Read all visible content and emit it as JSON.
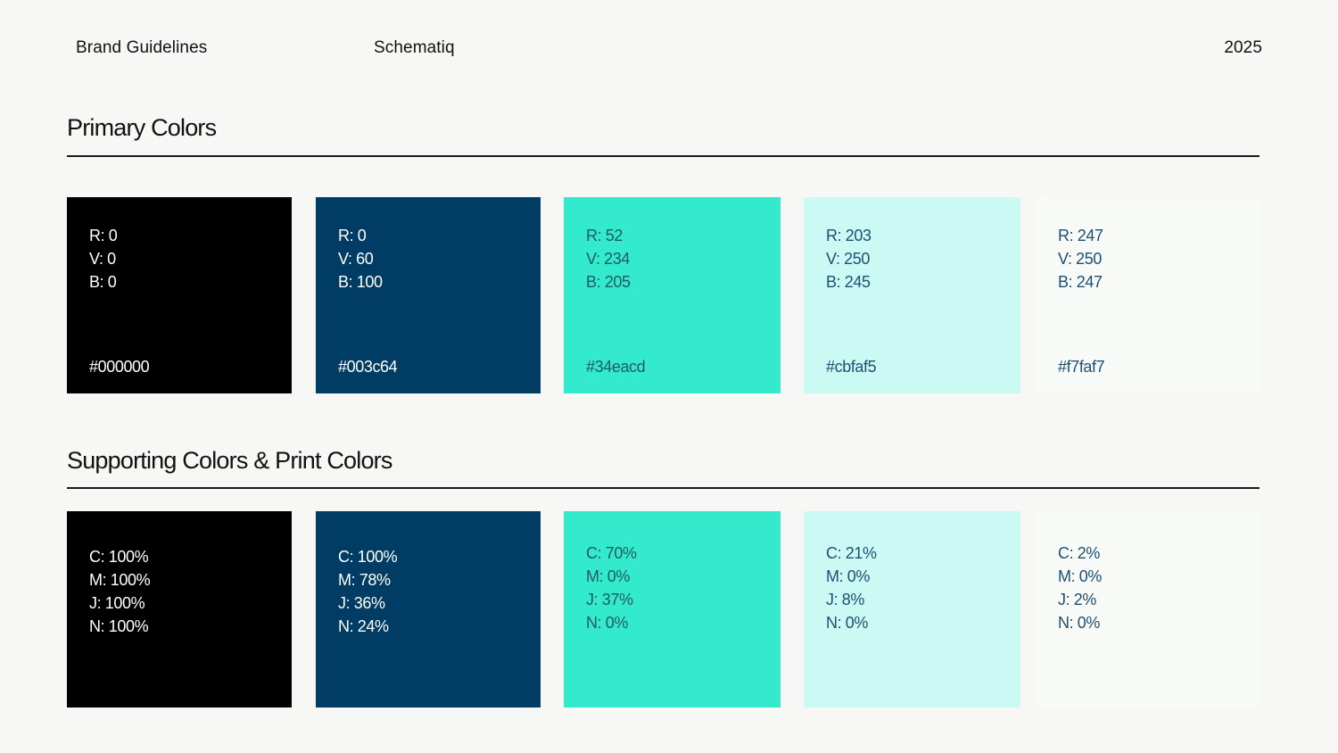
{
  "header": {
    "left": "Brand Guidelines",
    "center": "Schematiq",
    "right": "2025"
  },
  "primary": {
    "title": "Primary Colors",
    "swatches": [
      {
        "bg": "#000000",
        "fg": "#ffffff",
        "lines": [
          "R: 0",
          "V: 0",
          "B: 0"
        ],
        "hex": "#000000"
      },
      {
        "bg": "#003c64",
        "fg": "#ffffff",
        "lines": [
          "R: 0",
          "V: 60",
          "B: 100"
        ],
        "hex": "#003c64"
      },
      {
        "bg": "#34eacd",
        "fg": "#1f5b66",
        "lines": [
          "R: 52",
          "V: 234",
          "B: 205"
        ],
        "hex": "#34eacd"
      },
      {
        "bg": "#cbfaf5",
        "fg": "#1f4f72",
        "lines": [
          "R: 203",
          "V: 250",
          "B: 245"
        ],
        "hex": "#cbfaf5"
      },
      {
        "bg": "#f7faf7",
        "fg": "#1f4f72",
        "lines": [
          "R: 247",
          "V: 250",
          "B: 247"
        ],
        "hex": "#f7faf7"
      }
    ]
  },
  "supporting": {
    "title": "Supporting Colors & Print Colors",
    "swatches": [
      {
        "bg": "#000000",
        "fg": "#ffffff",
        "lines": [
          "C: 100%",
          "M: 100%",
          "J: 100%",
          "N: 100%"
        ]
      },
      {
        "bg": "#003c64",
        "fg": "#ffffff",
        "lines": [
          "C: 100%",
          "M: 78%",
          "J: 36%",
          "N: 24%"
        ]
      },
      {
        "bg": "#34eacd",
        "fg": "#1f5b66",
        "lines": [
          "C: 70%",
          "M: 0%",
          "J: 37%",
          "N: 0%"
        ]
      },
      {
        "bg": "#cbfaf5",
        "fg": "#1f4f72",
        "lines": [
          "C: 21%",
          "M: 0%",
          "J: 8%",
          "N: 0%"
        ]
      },
      {
        "bg": "#f7faf7",
        "fg": "#1f4f72",
        "lines": [
          "C: 2%",
          "M: 0%",
          "J: 2%",
          "N: 0%"
        ]
      }
    ]
  }
}
